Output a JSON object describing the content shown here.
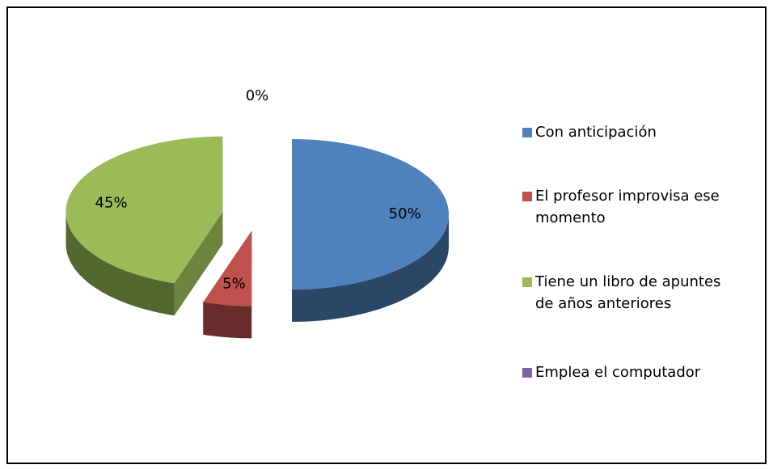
{
  "chart_data": {
    "type": "pie",
    "categories": [
      "Con anticipación",
      "El profesor improvisa ese momento",
      "Tiene un libro de apuntes de años anteriores",
      "Emplea el computador"
    ],
    "values": [
      50,
      5,
      45,
      0
    ],
    "value_labels": [
      "50%",
      "5%",
      "45%",
      "0%"
    ],
    "colors": [
      "#4f81bd",
      "#c0504d",
      "#9bbb59",
      "#8064a2"
    ],
    "legend": "right"
  }
}
